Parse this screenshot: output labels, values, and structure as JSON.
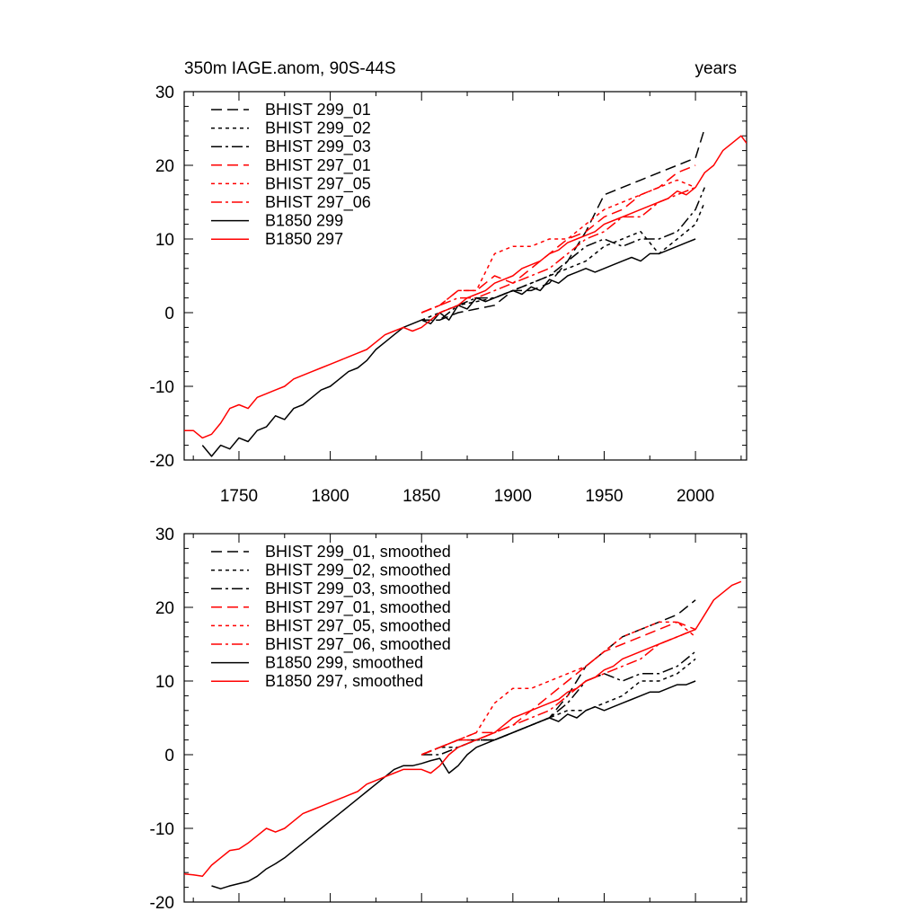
{
  "chart_data": [
    {
      "type": "line",
      "title": "350m IAGE.anom, 90S-44S",
      "units": "years",
      "xlim": [
        1720,
        2028
      ],
      "ylim": [
        -20,
        30
      ],
      "x_ticks": [
        1750,
        1800,
        1850,
        1900,
        1950,
        2000
      ],
      "y_ticks": [
        -20,
        -10,
        0,
        10,
        20,
        30
      ],
      "legend_position": "top-left",
      "series": [
        {
          "name": "BHIST 299_01",
          "color": "#000000",
          "dash": "longdash",
          "x": [
            1850,
            1860,
            1870,
            1880,
            1890,
            1900,
            1910,
            1920,
            1930,
            1940,
            1950,
            1960,
            1970,
            1980,
            1990,
            2000,
            2005
          ],
          "y": [
            -1,
            -1,
            0,
            0.5,
            1,
            3,
            3,
            4,
            7,
            11,
            16,
            17,
            18,
            19,
            20,
            21,
            25
          ]
        },
        {
          "name": "BHIST 299_02",
          "color": "#000000",
          "dash": "dash",
          "x": [
            1850,
            1860,
            1870,
            1880,
            1890,
            1900,
            1910,
            1920,
            1930,
            1940,
            1950,
            1960,
            1970,
            1980,
            1990,
            2000,
            2005
          ],
          "y": [
            -1,
            0,
            1,
            1.5,
            2,
            3,
            4,
            5,
            6,
            7,
            9,
            10,
            11,
            8,
            10,
            12,
            15
          ]
        },
        {
          "name": "BHIST 299_03",
          "color": "#000000",
          "dash": "dashdot",
          "x": [
            1850,
            1860,
            1870,
            1880,
            1890,
            1900,
            1910,
            1920,
            1930,
            1940,
            1950,
            1960,
            1970,
            1980,
            1990,
            2000,
            2005
          ],
          "y": [
            -1,
            -1,
            1,
            2,
            2,
            3,
            4,
            5,
            7,
            9,
            10,
            9,
            10,
            10,
            11,
            14,
            17
          ]
        },
        {
          "name": "BHIST 297_01",
          "color": "#ff0000",
          "dash": "longdash",
          "x": [
            1850,
            1860,
            1870,
            1880,
            1890,
            1900,
            1910,
            1920,
            1930,
            1940,
            1950,
            1960,
            1970,
            1980,
            1990,
            2000
          ],
          "y": [
            0,
            1,
            3,
            3,
            5,
            4,
            6,
            8,
            10,
            11,
            13,
            14,
            16,
            17,
            19,
            20
          ]
        },
        {
          "name": "BHIST 297_05",
          "color": "#ff0000",
          "dash": "dash",
          "x": [
            1850,
            1860,
            1870,
            1880,
            1890,
            1900,
            1910,
            1920,
            1930,
            1940,
            1950,
            1960,
            1970,
            1980,
            1990,
            2000
          ],
          "y": [
            0,
            1,
            3,
            3,
            8,
            9,
            9,
            10,
            10,
            12,
            14,
            15,
            16,
            17,
            18,
            17
          ]
        },
        {
          "name": "BHIST 297_06",
          "color": "#ff0000",
          "dash": "dashdot",
          "x": [
            1850,
            1860,
            1870,
            1880,
            1890,
            1900,
            1910,
            1920,
            1930,
            1940,
            1950,
            1960,
            1970,
            1980,
            1990,
            2000
          ],
          "y": [
            0,
            1,
            2,
            2,
            3,
            4,
            5,
            6,
            8,
            10,
            11,
            13,
            13,
            15,
            16,
            17
          ]
        },
        {
          "name": "B1850 299",
          "color": "#000000",
          "dash": "solid",
          "x": [
            1722,
            1730,
            1735,
            1740,
            1745,
            1750,
            1755,
            1760,
            1765,
            1770,
            1775,
            1780,
            1785,
            1790,
            1795,
            1800,
            1805,
            1810,
            1815,
            1820,
            1825,
            1830,
            1835,
            1840,
            1845,
            1850,
            1855,
            1860,
            1865,
            1870,
            1875,
            1880,
            1885,
            1890,
            1895,
            1900,
            1905,
            1910,
            1915,
            1920,
            1925,
            1930,
            1935,
            1940,
            1945,
            1950,
            1955,
            1960,
            1965,
            1970,
            1975,
            1980,
            1985,
            1990,
            1995,
            2000,
            2005
          ],
          "y": [
            null,
            -18,
            -19.5,
            -18,
            -18.5,
            -17,
            -17.5,
            -16,
            -15.5,
            -14,
            -14.5,
            -13,
            -12.5,
            -11.5,
            -10.5,
            -10,
            -9,
            -8,
            -7.5,
            -6.5,
            -5,
            -4,
            -3,
            -2,
            -1.5,
            -1,
            -1.5,
            0,
            -1,
            1,
            0.5,
            2,
            1.5,
            2,
            2.5,
            3,
            2.5,
            3.5,
            3,
            4.5,
            4,
            5,
            5.5,
            6,
            5.5,
            6,
            6.5,
            7,
            7.5,
            7,
            8,
            8,
            8.5,
            9,
            9.5,
            10,
            null
          ]
        },
        {
          "name": "B1850 297",
          "color": "#ff0000",
          "dash": "solid",
          "x": [
            1720,
            1725,
            1730,
            1735,
            1740,
            1745,
            1750,
            1755,
            1760,
            1765,
            1770,
            1775,
            1780,
            1785,
            1790,
            1795,
            1800,
            1805,
            1810,
            1815,
            1820,
            1825,
            1830,
            1835,
            1840,
            1845,
            1850,
            1855,
            1860,
            1865,
            1870,
            1875,
            1880,
            1885,
            1890,
            1895,
            1900,
            1905,
            1910,
            1915,
            1920,
            1925,
            1930,
            1935,
            1940,
            1945,
            1950,
            1955,
            1960,
            1965,
            1970,
            1975,
            1980,
            1985,
            1990,
            1995,
            2000,
            2005,
            2010,
            2015,
            2020,
            2025,
            2028
          ],
          "y": [
            -16,
            -16,
            -17,
            -16.5,
            -15,
            -13,
            -12.5,
            -13,
            -11.5,
            -11,
            -10.5,
            -10,
            -9,
            -8.5,
            -8,
            -7.5,
            -7,
            -6.5,
            -6,
            -5.5,
            -5,
            -4,
            -3,
            -2.5,
            -2,
            -2.5,
            -2,
            -1,
            0,
            0.5,
            1,
            2,
            2.5,
            3,
            4,
            4.5,
            5,
            6,
            6.5,
            7,
            8,
            8.5,
            9.5,
            10,
            10.5,
            11,
            12,
            12.5,
            13,
            13.5,
            14,
            14.5,
            15,
            15.5,
            16.5,
            16,
            17,
            19,
            20,
            22,
            23,
            24,
            23
          ]
        }
      ]
    },
    {
      "type": "line",
      "xlim": [
        1720,
        2028
      ],
      "ylim": [
        -20,
        30
      ],
      "y_ticks": [
        -20,
        -10,
        0,
        10,
        20,
        30
      ],
      "legend_position": "top-left",
      "series": [
        {
          "name": "BHIST 299_01, smoothed",
          "color": "#000000",
          "dash": "longdash",
          "x": [
            1850,
            1860,
            1870,
            1880,
            1890,
            1900,
            1910,
            1920,
            1930,
            1940,
            1950,
            1960,
            1970,
            1980,
            1990,
            2000
          ],
          "y": [
            0,
            1,
            2,
            2,
            2,
            3,
            4,
            5,
            8,
            12,
            14,
            16,
            17,
            18,
            19,
            21
          ]
        },
        {
          "name": "BHIST 299_02, smoothed",
          "color": "#000000",
          "dash": "dash",
          "x": [
            1850,
            1860,
            1870,
            1880,
            1890,
            1900,
            1910,
            1920,
            1930,
            1940,
            1950,
            1960,
            1970,
            1980,
            1990,
            2000
          ],
          "y": [
            0,
            1,
            1,
            2,
            2,
            3,
            4,
            5,
            6,
            6,
            7,
            8,
            10,
            10,
            11,
            13
          ]
        },
        {
          "name": "BHIST 299_03, smoothed",
          "color": "#000000",
          "dash": "dashdot",
          "x": [
            1850,
            1860,
            1870,
            1880,
            1890,
            1900,
            1910,
            1920,
            1930,
            1940,
            1950,
            1960,
            1970,
            1980,
            1990,
            2000
          ],
          "y": [
            0,
            0,
            1,
            2,
            2,
            3,
            4,
            5,
            7,
            10,
            11,
            10,
            11,
            11,
            12,
            14
          ]
        },
        {
          "name": "BHIST 297_01, smoothed",
          "color": "#ff0000",
          "dash": "longdash",
          "x": [
            1850,
            1860,
            1870,
            1880,
            1890,
            1900,
            1910,
            1920,
            1930,
            1940,
            1950,
            1960,
            1970,
            1980,
            1990,
            2000
          ],
          "y": [
            0,
            1,
            2,
            3,
            3,
            4,
            6,
            8,
            10,
            12,
            14,
            15,
            16,
            17,
            18,
            17
          ]
        },
        {
          "name": "BHIST 297_05, smoothed",
          "color": "#ff0000",
          "dash": "dash",
          "x": [
            1850,
            1860,
            1870,
            1880,
            1890,
            1900,
            1910,
            1920,
            1930,
            1940,
            1950,
            1960,
            1970,
            1980,
            1990,
            2000
          ],
          "y": [
            0,
            1,
            2,
            3,
            7,
            9,
            9,
            10,
            11,
            12,
            14,
            16,
            17,
            18,
            18,
            16
          ]
        },
        {
          "name": "BHIST 297_06, smoothed",
          "color": "#ff0000",
          "dash": "dashdot",
          "x": [
            1850,
            1860,
            1870,
            1880,
            1890,
            1900,
            1910,
            1920,
            1930,
            1940,
            1950,
            1960,
            1970,
            1980,
            1990,
            2000
          ],
          "y": [
            0,
            1,
            2,
            2,
            3,
            4,
            5,
            6,
            8,
            10,
            11,
            12,
            13,
            15,
            16,
            17
          ]
        },
        {
          "name": "B1850 299, smoothed",
          "color": "#000000",
          "dash": "solid",
          "x": [
            1735,
            1740,
            1745,
            1750,
            1755,
            1760,
            1765,
            1770,
            1775,
            1780,
            1785,
            1790,
            1795,
            1800,
            1805,
            1810,
            1815,
            1820,
            1825,
            1830,
            1835,
            1840,
            1845,
            1850,
            1855,
            1860,
            1865,
            1870,
            1875,
            1880,
            1885,
            1890,
            1895,
            1900,
            1905,
            1910,
            1915,
            1920,
            1925,
            1930,
            1935,
            1940,
            1945,
            1950,
            1955,
            1960,
            1965,
            1970,
            1975,
            1980,
            1985,
            1990,
            1995,
            2000
          ],
          "y": [
            -17.8,
            -18.2,
            -17.8,
            -17.5,
            -17.2,
            -16.5,
            -15.5,
            -14.8,
            -14,
            -13,
            -12,
            -11,
            -10,
            -9,
            -8,
            -7,
            -6,
            -5,
            -4,
            -3,
            -2,
            -1.5,
            -1.5,
            -1.2,
            -0.8,
            -0.5,
            -2.5,
            -1.5,
            0,
            1,
            1.5,
            2,
            2.5,
            3,
            3.5,
            4,
            4.5,
            5,
            4.5,
            5.5,
            5,
            6,
            6.5,
            6,
            6.5,
            7,
            7.5,
            8,
            8.5,
            8.5,
            9,
            9.5,
            9.5,
            10
          ]
        },
        {
          "name": "B1850 297, smoothed",
          "color": "#ff0000",
          "dash": "solid",
          "x": [
            1720,
            1725,
            1730,
            1735,
            1740,
            1745,
            1750,
            1755,
            1760,
            1765,
            1770,
            1775,
            1780,
            1785,
            1790,
            1795,
            1800,
            1805,
            1810,
            1815,
            1820,
            1825,
            1830,
            1835,
            1840,
            1845,
            1850,
            1855,
            1860,
            1865,
            1870,
            1875,
            1880,
            1885,
            1890,
            1895,
            1900,
            1905,
            1910,
            1915,
            1920,
            1925,
            1930,
            1935,
            1940,
            1945,
            1950,
            1955,
            1960,
            1965,
            1970,
            1975,
            1980,
            1985,
            1990,
            1995,
            2000,
            2005,
            2010,
            2015,
            2020,
            2025
          ],
          "y": [
            -16.2,
            -16.3,
            -16.5,
            -15,
            -14,
            -13,
            -12.8,
            -12,
            -11,
            -10,
            -10.5,
            -10,
            -9,
            -8,
            -7.5,
            -7,
            -6.5,
            -6,
            -5.5,
            -5,
            -4,
            -3.5,
            -3,
            -2.5,
            -2,
            -2,
            -2,
            -2.5,
            -1.5,
            0,
            1,
            1.5,
            2,
            2.5,
            3,
            4,
            5,
            5.5,
            6,
            6.5,
            7,
            7.5,
            8.5,
            9,
            10,
            10.5,
            11.5,
            12,
            13,
            13.5,
            14,
            14.5,
            15,
            15.5,
            16,
            16.5,
            17,
            19,
            21,
            22,
            23,
            23.5
          ]
        }
      ]
    }
  ]
}
